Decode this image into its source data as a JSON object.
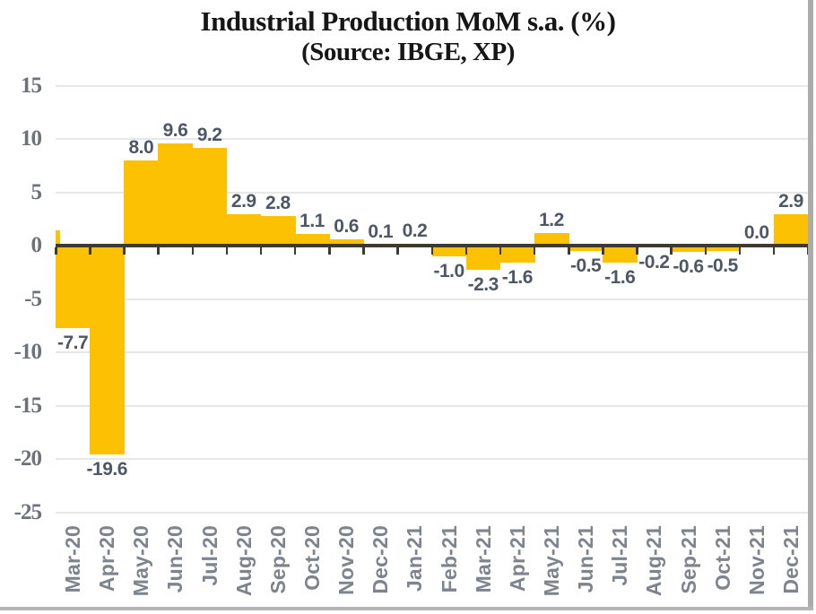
{
  "chart_data": {
    "type": "bar",
    "title": "Industrial Production MoM s.a. (%)",
    "subtitle": "(Source: IBGE, XP)",
    "categories": [
      "Mar-20",
      "Apr-20",
      "May-20",
      "Jun-20",
      "Jul-20",
      "Aug-20",
      "Sep-20",
      "Oct-20",
      "Nov-20",
      "Dec-20",
      "Jan-21",
      "Feb-21",
      "Mar-21",
      "Apr-21",
      "May-21",
      "Jun-21",
      "Jul-21",
      "Aug-21",
      "Sep-21",
      "Oct-21",
      "Nov-21",
      "Dec-21"
    ],
    "values": [
      -7.7,
      -19.6,
      8.0,
      9.6,
      9.2,
      2.9,
      2.8,
      1.1,
      0.6,
      0.1,
      0.2,
      -1.0,
      -2.3,
      -1.6,
      1.2,
      -0.5,
      -1.6,
      -0.2,
      -0.6,
      -0.5,
      0.0,
      2.9
    ],
    "data_labels": [
      "-7.7",
      "-19.6",
      "8.0",
      "9.6",
      "9.2",
      "2.9",
      "2.8",
      "1.1",
      "0.6",
      "0.1",
      "0.2",
      "-1.0",
      "-2.3",
      "-1.6",
      "1.2",
      "-0.5",
      "-1.6",
      "-0.2",
      "-0.6",
      "-0.5",
      "0.0",
      "2.9"
    ],
    "yticks": [
      "15",
      "10",
      "5",
      "0",
      "-5",
      "-10",
      "-15",
      "-20",
      "-25"
    ],
    "ytick_values": [
      15,
      10,
      5,
      0,
      -5,
      -10,
      -15,
      -20,
      -25
    ],
    "ylim": [
      -25,
      15
    ],
    "xlabel": "",
    "ylabel": "",
    "grid": true,
    "legend": "none",
    "clipped_partial_bar": {
      "position": "left-edge",
      "approx_value": 1.4
    },
    "colors": {
      "bar": "#FCC103",
      "axis_line": "#3E3A2F",
      "gridline": "#E7E7E7",
      "data_label": "#4E5765",
      "ytick_label": "#6C727C",
      "xtick_label": "#7E848E",
      "frame_border": "#ACACAC",
      "bottom_border": "#B5B5B5"
    }
  }
}
